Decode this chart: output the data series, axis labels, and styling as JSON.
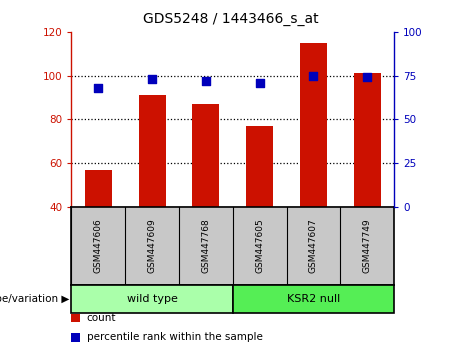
{
  "title": "GDS5248 / 1443466_s_at",
  "samples": [
    "GSM447606",
    "GSM447609",
    "GSM447768",
    "GSM447605",
    "GSM447607",
    "GSM447749"
  ],
  "counts": [
    57,
    91,
    87,
    77,
    115,
    101
  ],
  "percentile_ranks_pct": [
    68,
    73,
    72,
    71,
    75,
    74
  ],
  "bar_color": "#CC1100",
  "dot_color": "#0000BB",
  "ylim_left": [
    40,
    120
  ],
  "ylim_right": [
    0,
    100
  ],
  "yticks_left": [
    40,
    60,
    80,
    100,
    120
  ],
  "yticks_right": [
    0,
    25,
    50,
    75,
    100
  ],
  "ylabel_left_color": "#CC1100",
  "ylabel_right_color": "#0000BB",
  "legend_count_label": "count",
  "legend_percentile_label": "percentile rank within the sample",
  "genotype_label": "genotype/variation",
  "background_color": "#ffffff",
  "sample_box_color": "#C8C8C8",
  "wild_type_color": "#AAFFAA",
  "ksr2_null_color": "#55EE55",
  "bar_width": 0.5,
  "dot_size": 40
}
